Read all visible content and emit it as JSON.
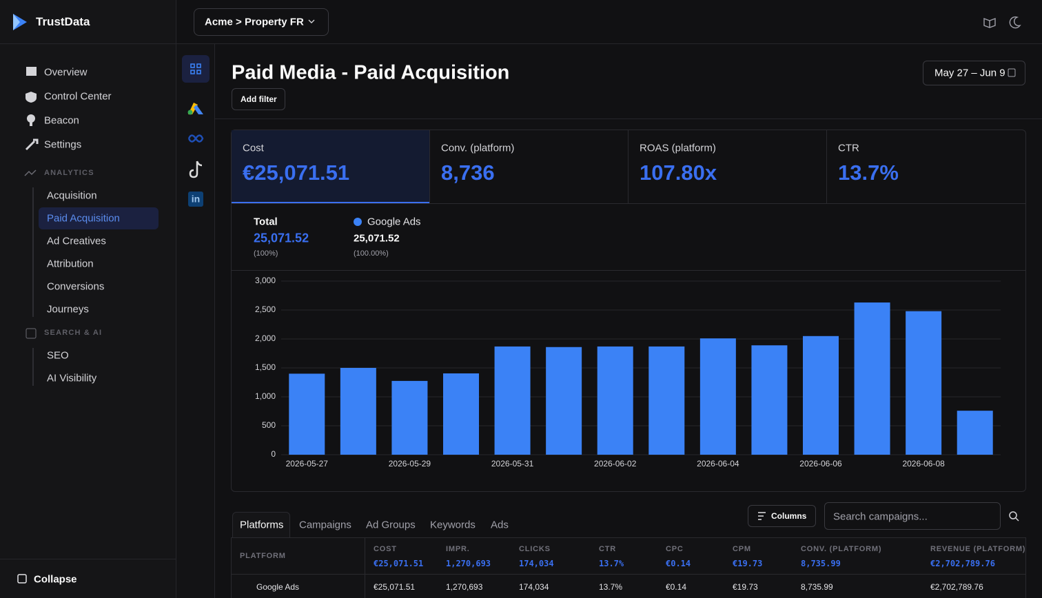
{
  "brand": "TrustData",
  "property": "Acme > Property FR",
  "nav": [
    "Overview",
    "Control Center",
    "Beacon",
    "Settings"
  ],
  "sections": [
    {
      "title": "ANALYTICS",
      "items": [
        "Acquisition",
        "Paid Acquisition",
        "Ad Creatives",
        "Attribution",
        "Conversions",
        "Journeys"
      ]
    },
    {
      "title": "SEARCH & AI",
      "items": [
        "SEO",
        "AI Visibility"
      ]
    }
  ],
  "collapse": "Collapse",
  "page_title": "Paid Media - Paid Acquisition",
  "add_filter": "Add filter",
  "date_range": "May 27 – Jun 9",
  "kpis": [
    {
      "label": "Cost",
      "value": "€25,071.51"
    },
    {
      "label": "Conv. (platform)",
      "value": "8,736"
    },
    {
      "label": "ROAS (platform)",
      "value": "107.80x"
    },
    {
      "label": "CTR",
      "value": "13.7%"
    }
  ],
  "legend": {
    "total_label": "Total",
    "total_value": "25,071.52",
    "total_share": "(100%)",
    "series_label": "Google Ads",
    "series_value": "25,071.52",
    "series_share": "(100.00%)"
  },
  "chart_data": {
    "type": "bar",
    "color": "#3b82f6",
    "categories": [
      "2026-05-27",
      null,
      "2026-05-29",
      null,
      "2026-05-31",
      null,
      "2026-06-02",
      null,
      "2026-06-04",
      null,
      "2026-06-06",
      null,
      "2026-06-08",
      null
    ],
    "values": [
      1400,
      1500,
      1275,
      1405,
      1870,
      1860,
      1870,
      1870,
      2010,
      1890,
      2050,
      2630,
      2480,
      760
    ],
    "ylim": [
      0,
      3000
    ],
    "yticks": [
      0,
      500,
      {
        "value": 1000,
        "label": "1,000"
      },
      {
        "value": 1500,
        "label": "1,500"
      },
      {
        "value": 2000,
        "label": "2,000"
      },
      {
        "value": 2500,
        "label": "2,500"
      },
      {
        "value": 3000,
        "label": "3,000"
      }
    ],
    "grid": true
  },
  "tabs": [
    "Platforms",
    "Campaigns",
    "Ad Groups",
    "Keywords",
    "Ads"
  ],
  "columns_button": "Columns",
  "search_placeholder": "Search campaigns...",
  "table": {
    "headers": [
      "PLATFORM",
      "COST",
      "IMPR.",
      "CLICKS",
      "CTR",
      "CPC",
      "CPM",
      "CONV. (PLATFORM)",
      "REVENUE (PLATFORM)"
    ],
    "totals": [
      null,
      "€25,071.51",
      "1,270,693",
      "174,034",
      "13.7%",
      "€0.14",
      "€19.73",
      "8,735.99",
      "€2,702,789.76"
    ],
    "rows": [
      [
        "Google Ads",
        "€25,071.51",
        "1,270,693",
        "174,034",
        "13.7%",
        "€0.14",
        "€19.73",
        "8,735.99",
        "€2,702,789.76"
      ]
    ]
  }
}
